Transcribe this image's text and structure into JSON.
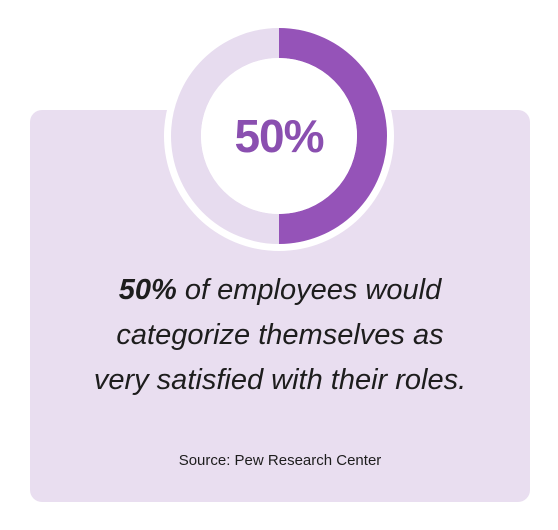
{
  "chart_data": {
    "type": "pie",
    "values": [
      50,
      50
    ],
    "highlight_value": 50,
    "center_label": "50%",
    "colors": {
      "highlight": "#9553b8",
      "track": "#e7dcef",
      "ring_rim": "#ffffff"
    }
  },
  "statement": {
    "highlight": "50%",
    "line1_rest": " of employees would",
    "line2": "categorize themselves as",
    "line3": "very satisfied with their roles."
  },
  "source": "Source: Pew Research Center",
  "colors": {
    "card_background": "#e9def0",
    "text": "#1d1d1d",
    "accent": "#8a4fb0"
  }
}
